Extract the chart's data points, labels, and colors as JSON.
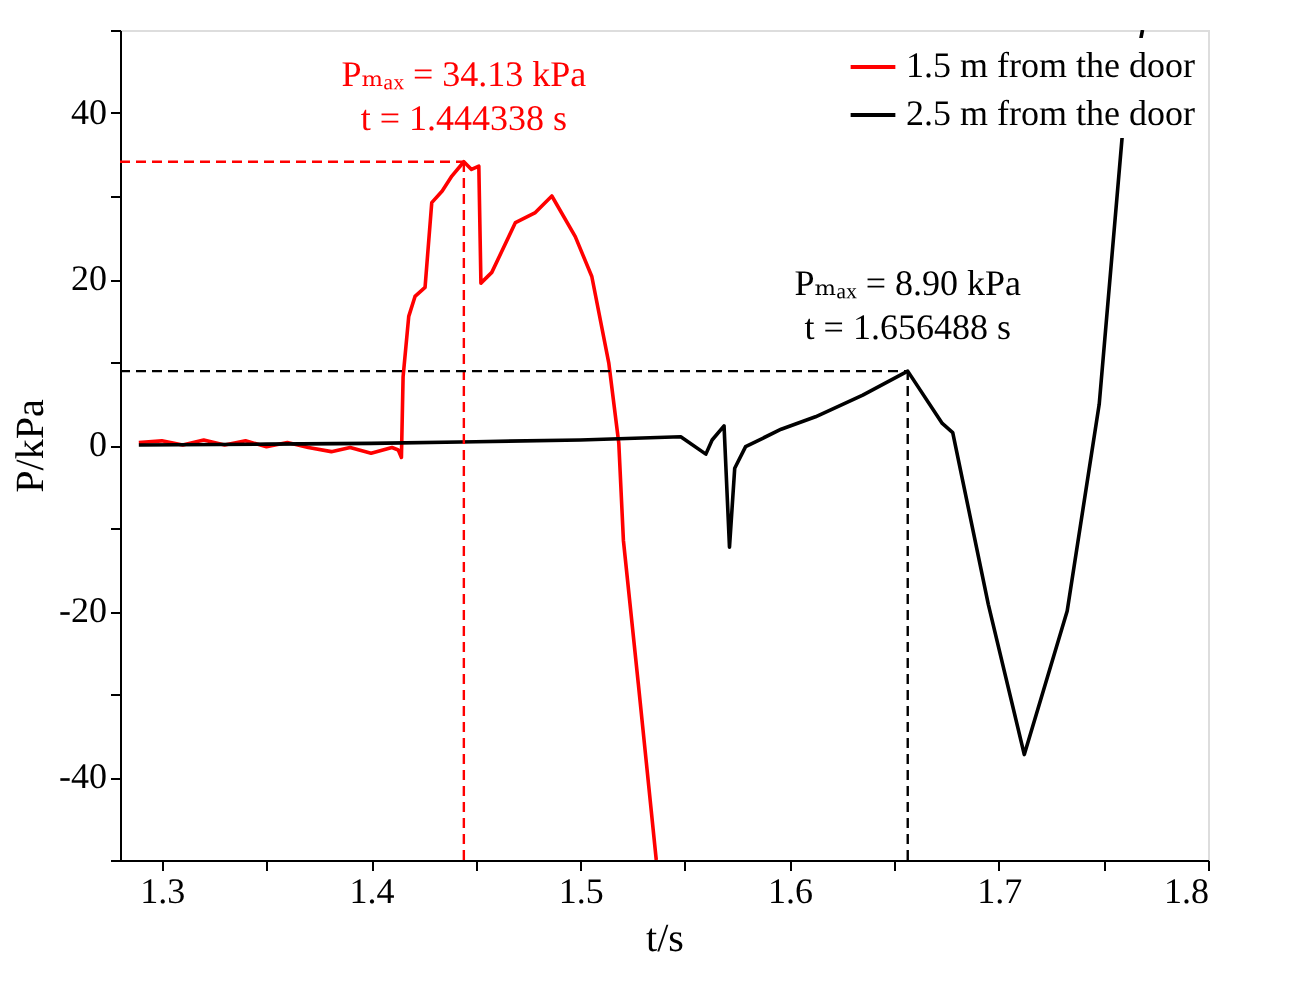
{
  "chart_data": {
    "type": "line",
    "xlabel": "t/s",
    "ylabel": "P/kPa",
    "xlim": [
      1.28,
      1.8
    ],
    "ylim": [
      -50,
      50
    ],
    "xticks": [
      1.3,
      {
        "value": 1.35,
        "label": null
      },
      1.4,
      {
        "value": 1.45,
        "label": null
      },
      1.5,
      {
        "value": 1.55,
        "label": null
      },
      1.6,
      {
        "value": 1.65,
        "label": null
      },
      1.7,
      {
        "value": 1.75,
        "label": null
      },
      1.8
    ],
    "yticks": [
      {
        "value": -50,
        "label": null
      },
      -40,
      {
        "value": -30,
        "label": null
      },
      -20,
      {
        "value": -10,
        "label": null
      },
      0,
      {
        "value": 10,
        "label": null
      },
      20,
      {
        "value": 30,
        "label": null
      },
      40,
      {
        "value": 50,
        "label": null
      }
    ],
    "legend": "top right",
    "grid": false,
    "line_style": "solid",
    "marker": "none",
    "series": [
      {
        "name": "1.5 m from the door",
        "color": "#ff0000",
        "x": [
          1.289,
          1.3,
          1.31,
          1.32,
          1.33,
          1.34,
          1.35,
          1.36,
          1.37,
          1.381,
          1.39,
          1.4,
          1.41,
          1.413,
          1.4145,
          1.4153,
          1.418,
          1.421,
          1.4258,
          1.429,
          1.434,
          1.4386,
          1.444338,
          1.448,
          1.4515,
          1.4525,
          1.4577,
          1.469,
          1.4785,
          1.4864,
          1.4976,
          1.5055,
          1.5136,
          1.5184,
          1.5206,
          1.5277,
          1.5363
        ],
        "values": [
          0.3,
          0.5,
          0,
          0.6,
          0,
          0.5,
          -0.2,
          0.3,
          -0.3,
          -0.8,
          -0.3,
          -1.0,
          -0.3,
          -0.6,
          -1.5,
          8.2,
          15.5,
          17.9,
          19,
          29.2,
          30.6,
          32.4,
          34.13,
          33.2,
          33.6,
          19.5,
          20.8,
          26.8,
          28,
          30,
          25.1,
          20.3,
          9.9,
          0.2,
          -11.5,
          -28.7,
          -50
        ]
      },
      {
        "name": "2.5 m from the door",
        "color": "#000000",
        "x": [
          1.289,
          1.35,
          1.4,
          1.45,
          1.5,
          1.548,
          1.56,
          1.563,
          1.5687,
          1.5713,
          1.5738,
          1.579,
          1.596,
          1.6124,
          1.635,
          1.656488,
          1.673,
          1.678,
          1.695,
          1.7122,
          1.7327,
          1.748,
          1.759,
          1.7687
        ],
        "values": [
          0,
          0.1,
          0.2,
          0.4,
          0.6,
          1.0,
          -1.1,
          0.6,
          2.3,
          -12.3,
          -2.8,
          -0.2,
          1.9,
          3.4,
          6.0,
          8.9,
          2.6,
          1.5,
          -19.2,
          -37.3,
          -20,
          4.9,
          37.2,
          50
        ]
      }
    ],
    "ref_lines": [
      {
        "axis": "y",
        "value": 34.13,
        "color": "#ff0000",
        "line_style": "dashed"
      },
      {
        "axis": "x",
        "value": 1.444338,
        "color": "#ff0000",
        "line_style": "dashed"
      },
      {
        "axis": "y",
        "value": 8.9,
        "color": "#000000",
        "line_style": "dashed"
      },
      {
        "axis": "x",
        "value": 1.656488,
        "color": "#000000",
        "line_style": "dashed"
      }
    ],
    "annotations": [
      "Pₘₐₓ = 34.13 kPa",
      "t = 1.444338 s",
      "Pₘₐₓ = 8.90 kPa",
      "t = 1.656488 s"
    ]
  }
}
